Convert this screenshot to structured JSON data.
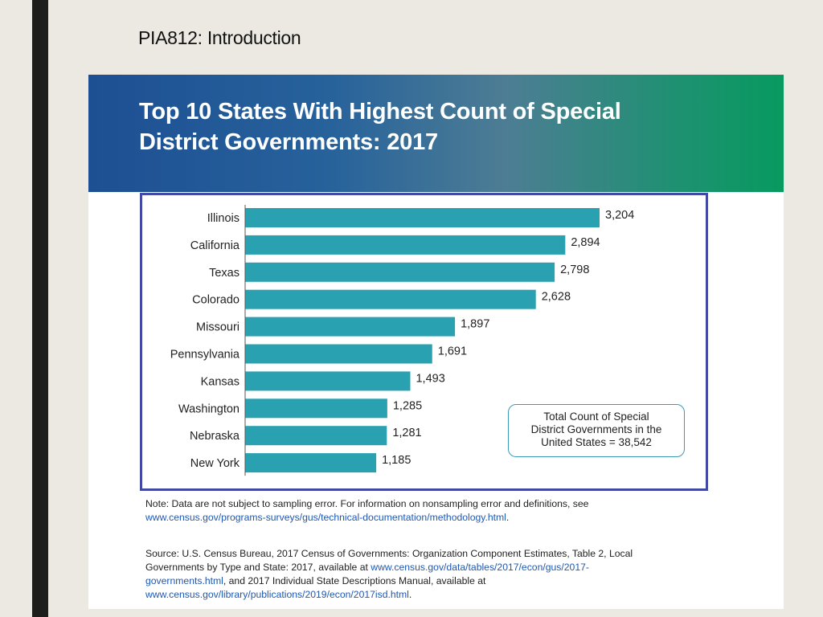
{
  "slide": {
    "title": "PIA812: Introduction"
  },
  "banner": {
    "title_line1": "Top 10 States With Highest Count of Special",
    "title_line2": "District Governments: 2017"
  },
  "colors": {
    "bar": "#2aa1b0",
    "frame": "#4249a2",
    "banner_start": "#1d4f93",
    "banner_end": "#079a5f",
    "link": "#1f58b2"
  },
  "chart_data": {
    "type": "bar",
    "orientation": "horizontal",
    "categories": [
      "Illinois",
      "California",
      "Texas",
      "Colorado",
      "Missouri",
      "Pennsylvania",
      "Kansas",
      "Washington",
      "Nebraska",
      "New York"
    ],
    "values": [
      3204,
      2894,
      2798,
      2628,
      1897,
      1691,
      1493,
      1285,
      1281,
      1185
    ],
    "value_labels": [
      "3,204",
      "2,894",
      "2,798",
      "2,628",
      "1,897",
      "1,691",
      "1,493",
      "1,285",
      "1,281",
      "1,185"
    ],
    "xlim": [
      0,
      3204
    ],
    "grid": false,
    "legend": false
  },
  "total_box": {
    "line1": "Total Count of Special",
    "line2": "District Governments in the",
    "line3": "United States = 38,542"
  },
  "note": {
    "text": "Note: Data are not subject to sampling error. For information on nonsampling error and definitions, see",
    "link": "www.census.gov/programs-surveys/gus/technical-documentation/methodology.html",
    "end": "."
  },
  "source": {
    "text1": "Source: U.S. Census Bureau, 2017 Census of Governments: Organization Component Estimates, Table 2, Local Governments by Type and State: 2017, available at ",
    "link1": "www.census.gov/data/tables/2017/econ/gus/2017-governments.html",
    "text2": ", and 2017 Individual State Descriptions Manual, available at ",
    "link2": "www.census.gov/library/publications/2019/econ/2017isd.html",
    "end": "."
  }
}
